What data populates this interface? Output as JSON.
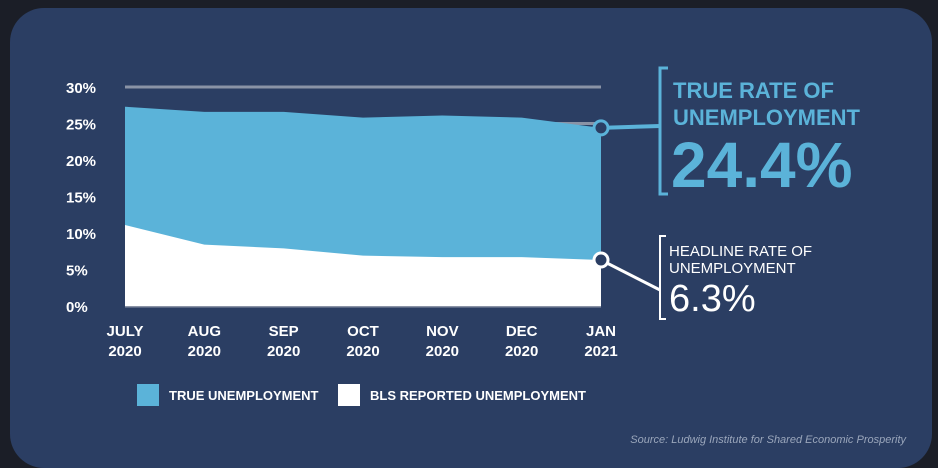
{
  "chart_data": {
    "type": "area",
    "categories": [
      "JULY 2020",
      "AUG 2020",
      "SEP 2020",
      "OCT 2020",
      "NOV 2020",
      "DEC 2020",
      "JAN 2021"
    ],
    "x_tick_lines": [
      [
        "JULY",
        "2020"
      ],
      [
        "AUG",
        "2020"
      ],
      [
        "SEP",
        "2020"
      ],
      [
        "OCT",
        "2020"
      ],
      [
        "NOV",
        "2020"
      ],
      [
        "DEC",
        "2020"
      ],
      [
        "JAN",
        "2021"
      ]
    ],
    "series": [
      {
        "name": "TRUE UNEMPLOYMENT",
        "color": "#5bb3d9",
        "values": [
          27.3,
          26.6,
          26.6,
          25.8,
          26.1,
          25.8,
          24.4
        ]
      },
      {
        "name": "BLS REPORTED UNEMPLOYMENT",
        "color": "#ffffff",
        "values": [
          11.1,
          8.4,
          7.9,
          6.9,
          6.7,
          6.7,
          6.3
        ]
      }
    ],
    "y_ticks": [
      "30%",
      "25%",
      "20%",
      "15%",
      "10%",
      "5%",
      "0%"
    ],
    "ylim": [
      0,
      30
    ],
    "grid": true,
    "callouts": [
      {
        "title_lines": [
          "TRUE RATE OF",
          "UNEMPLOYMENT"
        ],
        "value": "24.4%"
      },
      {
        "title_lines": [
          "HEADLINE RATE OF",
          "UNEMPLOYMENT"
        ],
        "value": "6.3%"
      }
    ],
    "legend_position": "bottom-left"
  },
  "source": "Source: Ludwig Institute for Shared Economic Prosperity"
}
